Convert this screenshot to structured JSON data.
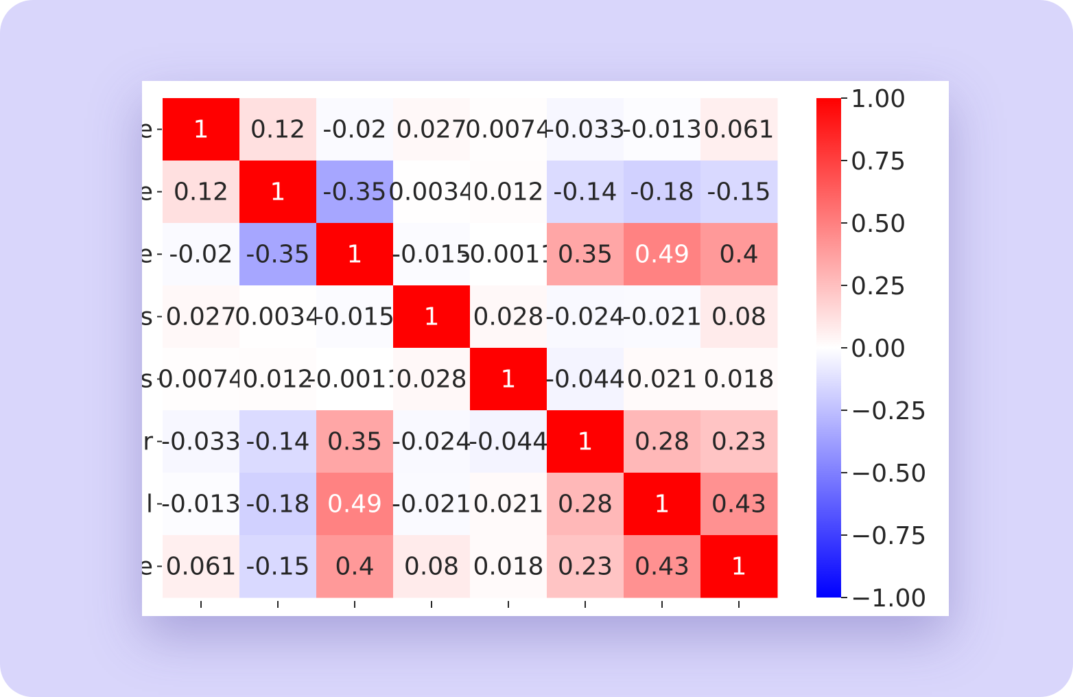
{
  "chart_data": {
    "type": "heatmap",
    "title": "",
    "xlabel": "",
    "ylabel": "",
    "x_tick_labels": [
      "",
      "",
      "",
      "",
      "",
      "",
      "",
      ""
    ],
    "y_tick_labels_visible_fragments": [
      "e",
      "e",
      "e",
      "s",
      "s",
      "r",
      "l",
      "e"
    ],
    "rows": 8,
    "cols": 8,
    "matrix": [
      [
        1,
        0.12,
        -0.02,
        0.027,
        0.0074,
        -0.033,
        -0.013,
        0.061
      ],
      [
        0.12,
        1,
        -0.35,
        0.0034,
        0.012,
        -0.14,
        -0.18,
        -0.15
      ],
      [
        -0.02,
        -0.35,
        1,
        -0.015,
        -0.0011,
        0.35,
        0.49,
        0.4
      ],
      [
        0.027,
        0.0034,
        -0.015,
        1,
        0.028,
        -0.024,
        -0.021,
        0.08
      ],
      [
        0.0074,
        0.012,
        -0.0011,
        0.028,
        1,
        -0.044,
        0.021,
        0.018
      ],
      [
        -0.033,
        -0.14,
        0.35,
        -0.024,
        -0.044,
        1,
        0.28,
        0.23
      ],
      [
        -0.013,
        -0.18,
        0.49,
        -0.021,
        0.021,
        0.28,
        1,
        0.43
      ],
      [
        0.061,
        -0.15,
        0.4,
        0.08,
        0.018,
        0.23,
        0.43,
        1
      ]
    ],
    "annotations": [
      [
        "1",
        "0.12",
        "-0.02",
        "0.027",
        "0.0074",
        "-0.033",
        "-0.013",
        "0.061"
      ],
      [
        "0.12",
        "1",
        "-0.35",
        "0.0034",
        "0.012",
        "-0.14",
        "-0.18",
        "-0.15"
      ],
      [
        "-0.02",
        "-0.35",
        "1",
        "-0.015",
        "-0.0011",
        "0.35",
        "0.49",
        "0.4"
      ],
      [
        "0.027",
        "0.0034",
        "-0.015",
        "1",
        "0.028",
        "-0.024",
        "-0.021",
        "0.08"
      ],
      [
        "0.0074",
        "0.012",
        "-0.0011",
        "0.028",
        "1",
        "-0.044",
        "0.021",
        "0.018"
      ],
      [
        "-0.033",
        "-0.14",
        "0.35",
        "-0.024",
        "-0.044",
        "1",
        "0.28",
        "0.23"
      ],
      [
        "-0.013",
        "-0.18",
        "0.49",
        "-0.021",
        "0.021",
        "0.28",
        "1",
        "0.43"
      ],
      [
        "0.061",
        "-0.15",
        "0.4",
        "0.08",
        "0.018",
        "0.23",
        "0.43",
        "1"
      ]
    ],
    "colormap": "bwr",
    "vmin": -1,
    "vmax": 1,
    "colorbar_ticks": [
      "1.00",
      "0.75",
      "0.50",
      "0.25",
      "0.00",
      "−0.25",
      "−0.50",
      "−0.75",
      "−1.00"
    ],
    "colorbar_tick_values": [
      1,
      0.75,
      0.5,
      0.25,
      0,
      -0.25,
      -0.5,
      -0.75,
      -1
    ],
    "colors": {
      "low": "#0000ff",
      "mid": "#ffffff",
      "high": "#ff0000",
      "dark_text": "#262626",
      "light_text": "#ffffff",
      "background": "#d9d6fb"
    }
  }
}
